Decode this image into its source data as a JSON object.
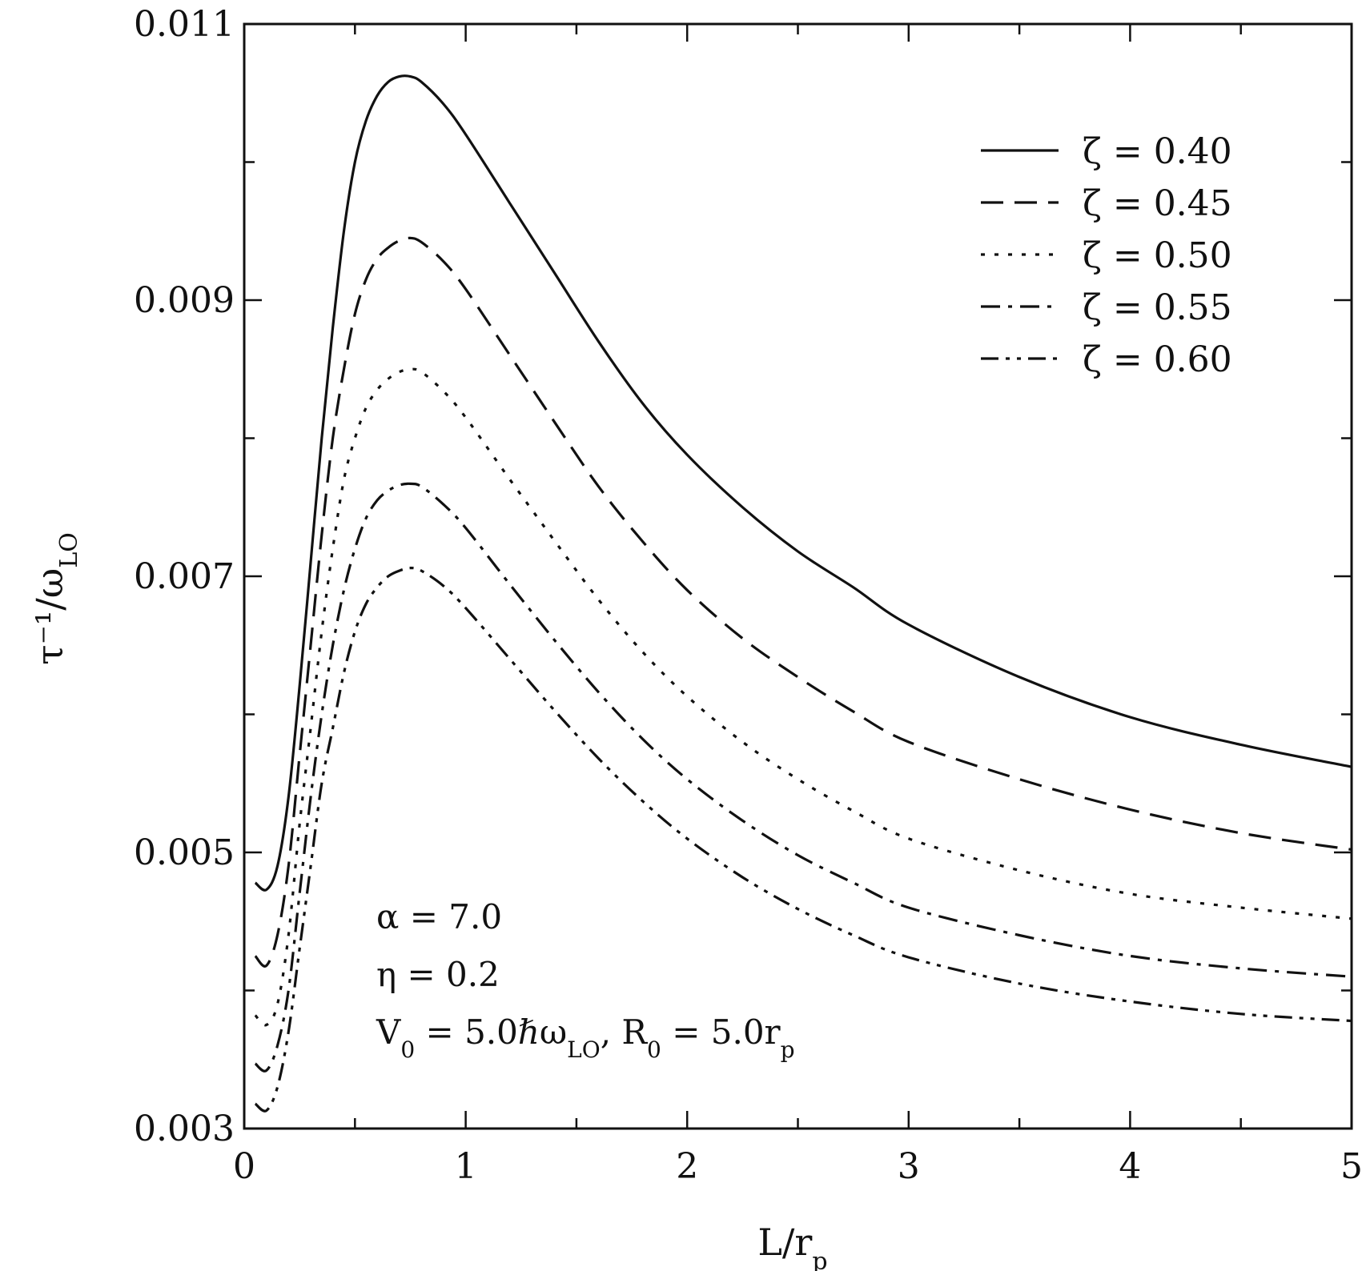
{
  "chart_data": {
    "type": "line",
    "xlabel": "L/r",
    "xlabel_sub": "p",
    "ylabel": "τ⁻¹/ω",
    "ylabel_sub": "LO",
    "xlim": [
      0,
      5
    ],
    "ylim": [
      0.003,
      0.011
    ],
    "x_ticks": [
      "0",
      "1",
      "2",
      "3",
      "4",
      "5"
    ],
    "y_ticks": [
      "0.003",
      "0.005",
      "0.007",
      "0.009",
      "0.011"
    ],
    "grid": false,
    "legend_position": "top-right",
    "series": [
      {
        "name": "ζ = 0.40",
        "dash": "solid",
        "x": [
          0.05,
          0.1,
          0.15,
          0.2,
          0.25,
          0.3,
          0.35,
          0.4,
          0.45,
          0.5,
          0.55,
          0.6,
          0.65,
          0.7,
          0.75,
          0.8,
          0.9,
          1.0,
          1.2,
          1.4,
          1.6,
          1.8,
          2.0,
          2.25,
          2.5,
          2.75,
          3.0,
          3.5,
          4.0,
          4.5,
          5.0
        ],
        "y": [
          0.00478,
          0.00473,
          0.0049,
          0.0054,
          0.0062,
          0.0071,
          0.008,
          0.0088,
          0.0095,
          0.01,
          0.0103,
          0.01048,
          0.01058,
          0.01062,
          0.01062,
          0.01058,
          0.01042,
          0.0102,
          0.0097,
          0.0092,
          0.0087,
          0.00825,
          0.00788,
          0.0075,
          0.00718,
          0.00692,
          0.00665,
          0.00627,
          0.00598,
          0.00578,
          0.00562
        ]
      },
      {
        "name": "ζ = 0.45",
        "dash": "dash",
        "x": [
          0.05,
          0.1,
          0.15,
          0.2,
          0.25,
          0.3,
          0.35,
          0.4,
          0.45,
          0.5,
          0.55,
          0.6,
          0.65,
          0.7,
          0.75,
          0.8,
          0.9,
          1.0,
          1.2,
          1.4,
          1.6,
          1.8,
          2.0,
          2.25,
          2.5,
          2.75,
          3.0,
          3.5,
          4.0,
          4.5,
          5.0
        ],
        "y": [
          0.00425,
          0.00418,
          0.0044,
          0.0049,
          0.0057,
          0.0065,
          0.0073,
          0.008,
          0.0085,
          0.0089,
          0.00915,
          0.0093,
          0.00938,
          0.00943,
          0.00945,
          0.00942,
          0.00928,
          0.00908,
          0.0086,
          0.00812,
          0.00765,
          0.00725,
          0.0069,
          0.00655,
          0.00627,
          0.00602,
          0.0058,
          0.00553,
          0.00531,
          0.00514,
          0.00502
        ]
      },
      {
        "name": "ζ = 0.50",
        "dash": "dot",
        "x": [
          0.05,
          0.1,
          0.15,
          0.2,
          0.25,
          0.3,
          0.35,
          0.4,
          0.45,
          0.5,
          0.55,
          0.6,
          0.65,
          0.7,
          0.75,
          0.8,
          0.9,
          1.0,
          1.2,
          1.4,
          1.6,
          1.8,
          2.0,
          2.25,
          2.5,
          2.75,
          3.0,
          3.5,
          4.0,
          4.5,
          5.0
        ],
        "y": [
          0.00382,
          0.00375,
          0.0039,
          0.0044,
          0.0052,
          0.0059,
          0.0066,
          0.0072,
          0.0077,
          0.008,
          0.00822,
          0.00835,
          0.00843,
          0.00848,
          0.0085,
          0.00848,
          0.00834,
          0.00815,
          0.0077,
          0.00726,
          0.00683,
          0.00645,
          0.00613,
          0.0058,
          0.00553,
          0.0053,
          0.0051,
          0.00487,
          0.0047,
          0.0046,
          0.00452
        ]
      },
      {
        "name": "ζ = 0.55",
        "dash": "dashdot",
        "x": [
          0.05,
          0.1,
          0.15,
          0.2,
          0.25,
          0.3,
          0.35,
          0.4,
          0.45,
          0.5,
          0.55,
          0.6,
          0.65,
          0.7,
          0.75,
          0.8,
          0.9,
          1.0,
          1.2,
          1.4,
          1.6,
          1.8,
          2.0,
          2.25,
          2.5,
          2.75,
          3.0,
          3.5,
          4.0,
          4.5,
          5.0
        ],
        "y": [
          0.00347,
          0.00342,
          0.0036,
          0.004,
          0.0047,
          0.0054,
          0.006,
          0.0065,
          0.0069,
          0.0072,
          0.00742,
          0.00755,
          0.00762,
          0.00766,
          0.00767,
          0.00765,
          0.00752,
          0.00735,
          0.00694,
          0.00654,
          0.00616,
          0.00582,
          0.00553,
          0.00523,
          0.00498,
          0.00478,
          0.0046,
          0.0044,
          0.00425,
          0.00416,
          0.0041
        ]
      },
      {
        "name": "ζ = 0.60",
        "dash": "dashdotdot",
        "x": [
          0.05,
          0.1,
          0.15,
          0.2,
          0.25,
          0.3,
          0.35,
          0.4,
          0.45,
          0.5,
          0.55,
          0.6,
          0.65,
          0.7,
          0.75,
          0.8,
          0.9,
          1.0,
          1.2,
          1.4,
          1.6,
          1.8,
          2.0,
          2.25,
          2.5,
          2.75,
          3.0,
          3.5,
          4.0,
          4.5,
          5.0
        ],
        "y": [
          0.00318,
          0.00313,
          0.0033,
          0.0037,
          0.0043,
          0.0049,
          0.0055,
          0.0059,
          0.0063,
          0.0066,
          0.0068,
          0.00692,
          0.007,
          0.00704,
          0.00706,
          0.00704,
          0.00693,
          0.00677,
          0.0064,
          0.00603,
          0.00568,
          0.00537,
          0.0051,
          0.00482,
          0.00459,
          0.0044,
          0.00424,
          0.00405,
          0.00392,
          0.00383,
          0.00378
        ]
      }
    ],
    "annotations": {
      "alpha": "α = 7.0",
      "eta": "η = 0.2",
      "v0_prefix": "V",
      "v0_sub": "0",
      "v0_value": " = 5.0ℏω",
      "v0_sub2": "LO",
      "r0_prefix": ",  R",
      "r0_sub": "0",
      "r0_value": " = 5.0r",
      "r0_sub2": "p"
    }
  }
}
